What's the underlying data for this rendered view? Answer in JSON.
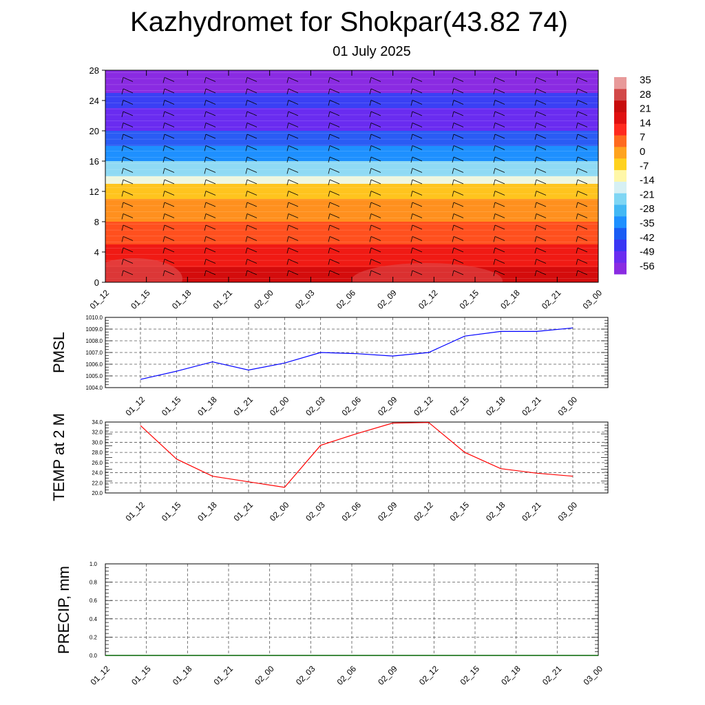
{
  "title": "Kazhydromet for Shokpar(43.82 74)",
  "subtitle": "01 July 2025",
  "colors": {
    "pmsl_line": "#0000ff",
    "temp_line": "#ff0000",
    "precip_line": "#006400",
    "colorbar": [
      "#8a2be2",
      "#6a2cf0",
      "#3a36f4",
      "#1a5cf4",
      "#1e90ff",
      "#43b8f4",
      "#7fd6f4",
      "#d6f0f4",
      "#fff7a8",
      "#ffd21e",
      "#ffa31e",
      "#ff6a1e",
      "#ff2a1e",
      "#e01010",
      "#c80c0c",
      "#d24848",
      "#e89a9a"
    ]
  },
  "chart_data": [
    {
      "type": "heatmap",
      "title": "",
      "xlabel": "",
      "ylabel": "",
      "ylim": [
        0,
        28
      ],
      "yticks": [
        "0",
        "4",
        "8",
        "12",
        "16",
        "20",
        "24",
        "28"
      ],
      "categories": [
        "01_12",
        "01_15",
        "01_18",
        "01_21",
        "02_00",
        "02_03",
        "02_06",
        "02_09",
        "02_12",
        "02_15",
        "02_18",
        "02_21",
        "03_00"
      ],
      "colorbar_labels": [
        "35",
        "28",
        "21",
        "14",
        "7",
        "0",
        "-7",
        "-14",
        "-21",
        "-28",
        "-35",
        "-42",
        "-49",
        "-56"
      ],
      "bands": [
        {
          "from": 0,
          "to": 2,
          "value": 28
        },
        {
          "from": 2,
          "to": 5,
          "value": 21
        },
        {
          "from": 5,
          "to": 8,
          "value": 14
        },
        {
          "from": 8,
          "to": 11,
          "value": 7
        },
        {
          "from": 11,
          "to": 13,
          "value": 0
        },
        {
          "from": 13,
          "to": 14,
          "value": -14
        },
        {
          "from": 14,
          "to": 16,
          "value": -21
        },
        {
          "from": 16,
          "to": 18,
          "value": -35
        },
        {
          "from": 18,
          "to": 20,
          "value": -42
        },
        {
          "from": 20,
          "to": 23,
          "value": -56
        },
        {
          "from": 23,
          "to": 25,
          "value": -49
        },
        {
          "from": 25,
          "to": 28,
          "value": -60
        }
      ],
      "grid": false
    },
    {
      "type": "line",
      "ylabel": "PMSL",
      "ylim": [
        1004.0,
        1010.0
      ],
      "yticks": [
        "1004.0",
        "1005.0",
        "1006.0",
        "1007.0",
        "1008.0",
        "1009.0",
        "1010.0"
      ],
      "categories": [
        "01_12",
        "01_15",
        "01_18",
        "01_21",
        "02_00",
        "02_03",
        "02_06",
        "02_09",
        "02_12",
        "02_15",
        "02_18",
        "02_21",
        "03_00"
      ],
      "values": [
        1004.7,
        1005.4,
        1006.2,
        1005.5,
        1006.1,
        1007.0,
        1006.9,
        1006.7,
        1007.0,
        1008.4,
        1008.8,
        1008.8,
        1009.1
      ],
      "grid": true
    },
    {
      "type": "line",
      "ylabel": "TEMP at 2 M",
      "ylim": [
        20.0,
        34.0
      ],
      "yticks": [
        "20.0",
        "22.0",
        "24.0",
        "26.0",
        "28.0",
        "30.0",
        "32.0",
        "34.0"
      ],
      "categories": [
        "01_12",
        "01_15",
        "01_18",
        "01_21",
        "02_00",
        "02_03",
        "02_06",
        "02_09",
        "02_12",
        "02_15",
        "02_18",
        "02_21",
        "03_00"
      ],
      "values": [
        33.3,
        26.7,
        23.3,
        22.2,
        21.1,
        29.4,
        31.7,
        33.8,
        33.9,
        28.0,
        24.8,
        23.9,
        23.3
      ],
      "grid": true
    },
    {
      "type": "line",
      "ylabel": "PRECIP, mm",
      "ylim": [
        0.0,
        1.0
      ],
      "yticks": [
        "0.0",
        "0.2",
        "0.4",
        "0.6",
        "0.8",
        "1.0"
      ],
      "categories": [
        "01_12",
        "01_15",
        "01_18",
        "01_21",
        "02_00",
        "02_03",
        "02_06",
        "02_09",
        "02_12",
        "02_15",
        "02_18",
        "02_21",
        "03_00"
      ],
      "values": [
        0,
        0,
        0,
        0,
        0,
        0,
        0,
        0,
        0,
        0,
        0,
        0,
        0
      ],
      "grid": true
    }
  ]
}
